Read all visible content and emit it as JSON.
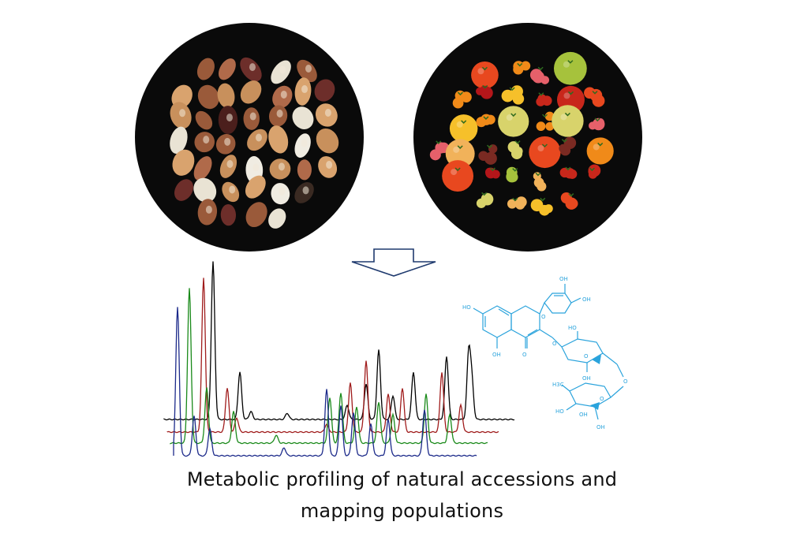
{
  "figure": {
    "panels": {
      "beans": {
        "seed_colors": [
          "#7a3b22",
          "#c8905c",
          "#e9e3d4",
          "#4b1f1c",
          "#9a5a3a",
          "#d9a36e",
          "#3a2a22",
          "#b06a4a",
          "#f0ece2",
          "#6d2e2a"
        ]
      },
      "tomatoes": {
        "fruit_colors": [
          "#c8271b",
          "#e8481f",
          "#f08a19",
          "#f6c02a",
          "#d8d36b",
          "#b4161a",
          "#7a2a22",
          "#e6606a",
          "#a6c23c",
          "#f1b25a"
        ]
      }
    },
    "arrow": {
      "direction": "down",
      "color": "#1f3a6e"
    },
    "chromatograms": [
      {
        "color": "#000000"
      },
      {
        "color": "#a01c1c"
      },
      {
        "color": "#1a8a1a"
      },
      {
        "color": "#1c2a8a"
      }
    ],
    "molecule": {
      "color": "#2aa3dc",
      "labels": [
        "OH",
        "OH",
        "HO",
        "OH",
        "O",
        "O",
        "O",
        "O",
        "HO",
        "OH",
        "H3C",
        "O",
        "O",
        "HO",
        "OH",
        "OH"
      ]
    },
    "caption": {
      "line1": "Metabolic profiling of natural accessions and",
      "line2": "mapping populations"
    }
  }
}
